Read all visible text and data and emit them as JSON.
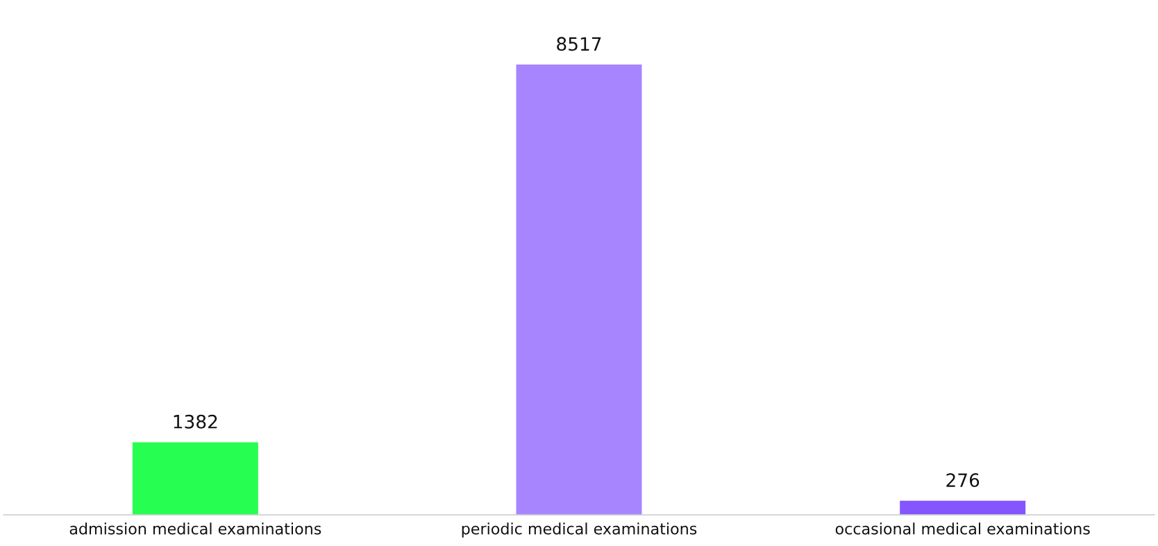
{
  "chart_data": {
    "type": "bar",
    "categories": [
      "admission medical examinations",
      "periodic medical examinations",
      "occasional medical examinations"
    ],
    "values": [
      1382,
      8517,
      276
    ],
    "colors": [
      "#27fe52",
      "#a785ff",
      "#8555fe"
    ],
    "data_labels": true,
    "grid": false,
    "legend": false
  }
}
